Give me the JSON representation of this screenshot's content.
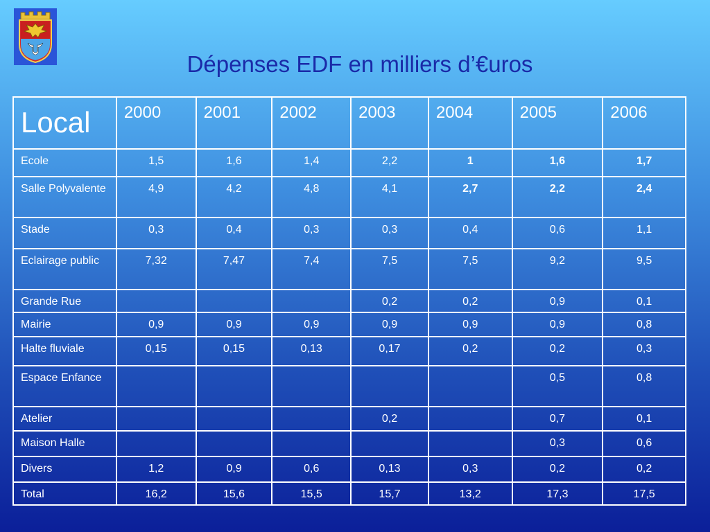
{
  "slide": {
    "title": "Dépenses EDF en milliers d’€uros",
    "logo_icon": "coat-of-arms-icon"
  },
  "table": {
    "header": [
      "Local",
      "2000",
      "2001",
      "2002",
      "2003",
      "2004",
      "2005",
      "2006"
    ],
    "rows": [
      {
        "label": "Ecole",
        "values": [
          "1,5",
          "1,6",
          "1,4",
          "2,2",
          "1",
          "1,6",
          "1,7"
        ],
        "bold_from": 4
      },
      {
        "label": "Salle Polyvalente",
        "values": [
          "4,9",
          "4,2",
          "4,8",
          "4,1",
          "2,7",
          "2,2",
          "2,4"
        ],
        "bold_from": 4
      },
      {
        "label": "Stade",
        "values": [
          "0,3",
          "0,4",
          "0,3",
          "0,3",
          "0,4",
          "0,6",
          "1,1"
        ]
      },
      {
        "label": "Eclairage public",
        "values": [
          "7,32",
          "7,47",
          "7,4",
          "7,5",
          "7,5",
          "9,2",
          "9,5"
        ]
      },
      {
        "label": "Grande Rue",
        "values": [
          "",
          "",
          "",
          "0,2",
          "0,2",
          "0,9",
          "0,1"
        ]
      },
      {
        "label": "Mairie",
        "values": [
          "0,9",
          "0,9",
          "0,9",
          "0,9",
          "0,9",
          "0,9",
          "0,8"
        ]
      },
      {
        "label": "Halte fluviale",
        "values": [
          "0,15",
          "0,15",
          "0,13",
          "0,17",
          "0,2",
          "0,2",
          "0,3"
        ]
      },
      {
        "label": "Espace Enfance",
        "values": [
          "",
          "",
          "",
          "",
          "",
          "0,5",
          "0,8"
        ]
      },
      {
        "label": "Atelier",
        "values": [
          "",
          "",
          "",
          "0,2",
          "",
          "0,7",
          "0,1"
        ]
      },
      {
        "label": "Maison Halle",
        "values": [
          "",
          "",
          "",
          "",
          "",
          "0,3",
          "0,6"
        ]
      },
      {
        "label": "Divers",
        "values": [
          "1,2",
          "0,9",
          "0,6",
          "0,13",
          "0,3",
          "0,2",
          "0,2"
        ]
      },
      {
        "label": "Total",
        "values": [
          "16,2",
          "15,6",
          "15,5",
          "15,7",
          "13,2",
          "17,3",
          "17,5"
        ]
      }
    ]
  }
}
